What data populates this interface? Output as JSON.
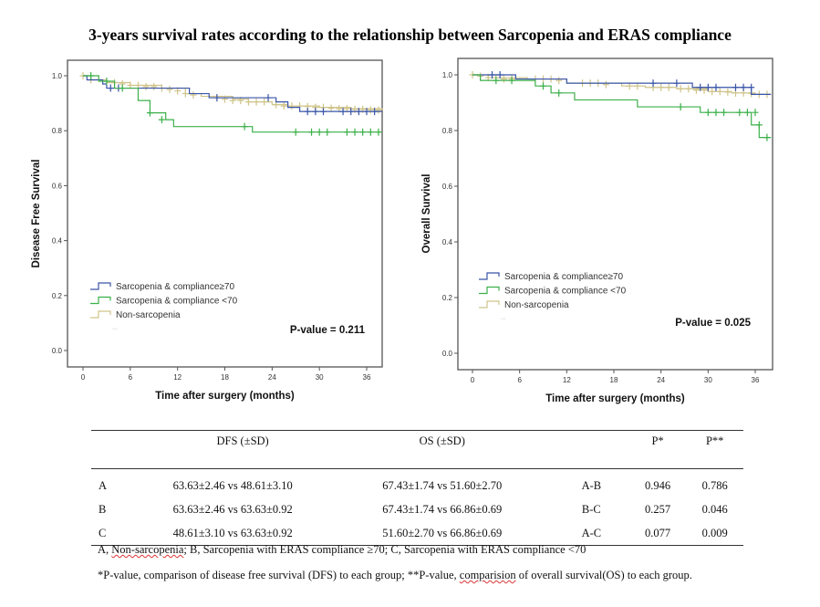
{
  "title": "3-years survival rates according to the relationship between Sarcopenia and ERAS compliance",
  "colors": {
    "blue": "#3a55a8",
    "green": "#3cb04a",
    "tan": "#cfc48a"
  },
  "chart_data": [
    {
      "type": "line",
      "subtype": "kaplan-meier",
      "title": "",
      "xlabel": "Time after surgery (months)",
      "ylabel": "Disease Free Survival",
      "xlim": [
        -2,
        38
      ],
      "ylim": [
        -0.05,
        1.05
      ],
      "xticks": [
        "0",
        "6",
        "12",
        "18",
        "24",
        "30",
        "36"
      ],
      "yticks": [
        "0.0",
        "0.2",
        "0.4",
        "0.6",
        "0.8",
        "1.0"
      ],
      "annotation": "P-value = 0.211",
      "legend": {
        "placement": "lower-left",
        "entries": [
          "Sarcopenia & compliance≥70",
          "Sarcopenia & compliance <70",
          "Non-sarcopenia"
        ],
        "extra": "..."
      },
      "series": [
        {
          "name": "Sarcopenia & compliance≥70",
          "color": "#3a55a8",
          "steps": [
            [
              0,
              1.0
            ],
            [
              0.5,
              0.985
            ],
            [
              2.5,
              0.97
            ],
            [
              3,
              0.955
            ],
            [
              13.5,
              0.935
            ],
            [
              16,
              0.92
            ],
            [
              24.5,
              0.905
            ],
            [
              26,
              0.885
            ],
            [
              27.5,
              0.87
            ],
            [
              38,
              0.87
            ]
          ],
          "censors": [
            [
              3.5,
              0.955
            ],
            [
              4.5,
              0.955
            ],
            [
              17,
              0.92
            ],
            [
              23.5,
              0.92
            ],
            [
              28.5,
              0.87
            ],
            [
              29.5,
              0.87
            ],
            [
              30.5,
              0.87
            ],
            [
              33,
              0.87
            ],
            [
              34,
              0.87
            ],
            [
              35,
              0.87
            ],
            [
              36,
              0.87
            ],
            [
              37,
              0.87
            ]
          ]
        },
        {
          "name": "Sarcopenia & compliance <70",
          "color": "#3cb04a",
          "steps": [
            [
              0,
              1.0
            ],
            [
              2,
              0.98
            ],
            [
              4,
              0.955
            ],
            [
              7,
              0.91
            ],
            [
              8.5,
              0.865
            ],
            [
              10.5,
              0.84
            ],
            [
              11.5,
              0.815
            ],
            [
              21.5,
              0.795
            ],
            [
              38,
              0.795
            ]
          ],
          "censors": [
            [
              1,
              1.0
            ],
            [
              3,
              0.98
            ],
            [
              5,
              0.955
            ],
            [
              8.5,
              0.865
            ],
            [
              10,
              0.84
            ],
            [
              20.5,
              0.815
            ],
            [
              27,
              0.795
            ],
            [
              29,
              0.795
            ],
            [
              30,
              0.795
            ],
            [
              31,
              0.795
            ],
            [
              33.5,
              0.795
            ],
            [
              34.5,
              0.795
            ],
            [
              35.5,
              0.795
            ],
            [
              36.5,
              0.795
            ],
            [
              37.5,
              0.795
            ]
          ]
        },
        {
          "name": "Non-sarcopenia",
          "color": "#cfc48a",
          "steps": [
            [
              0,
              1.0
            ],
            [
              1,
              0.985
            ],
            [
              3,
              0.975
            ],
            [
              6,
              0.965
            ],
            [
              10,
              0.955
            ],
            [
              13,
              0.935
            ],
            [
              15,
              0.925
            ],
            [
              19,
              0.915
            ],
            [
              21,
              0.905
            ],
            [
              24,
              0.895
            ],
            [
              26,
              0.89
            ],
            [
              30,
              0.885
            ],
            [
              34,
              0.88
            ],
            [
              38,
              0.875
            ]
          ],
          "censors": [
            [
              0,
              1.0
            ],
            [
              1,
              0.985
            ],
            [
              4,
              0.975
            ],
            [
              5,
              0.97
            ],
            [
              6,
              0.965
            ],
            [
              7,
              0.965
            ],
            [
              8,
              0.96
            ],
            [
              9,
              0.96
            ],
            [
              10,
              0.955
            ],
            [
              11,
              0.95
            ],
            [
              12,
              0.945
            ],
            [
              13,
              0.935
            ],
            [
              14,
              0.93
            ],
            [
              17,
              0.92
            ],
            [
              18,
              0.915
            ],
            [
              19,
              0.91
            ],
            [
              20,
              0.91
            ],
            [
              21,
              0.905
            ],
            [
              22,
              0.905
            ],
            [
              23,
              0.905
            ],
            [
              24.5,
              0.895
            ],
            [
              25.5,
              0.89
            ],
            [
              26.5,
              0.89
            ],
            [
              27.5,
              0.89
            ],
            [
              28.5,
              0.888
            ],
            [
              29.5,
              0.885
            ],
            [
              30.5,
              0.885
            ],
            [
              31.5,
              0.882
            ],
            [
              32.5,
              0.88
            ],
            [
              33.5,
              0.88
            ],
            [
              34.5,
              0.878
            ],
            [
              35.5,
              0.878
            ],
            [
              36.5,
              0.876
            ],
            [
              37.5,
              0.875
            ]
          ]
        }
      ]
    },
    {
      "type": "line",
      "subtype": "kaplan-meier",
      "title": "",
      "xlabel": "Time after surgery (months)",
      "ylabel": "Overall Survival",
      "xlim": [
        -2,
        38
      ],
      "ylim": [
        -0.05,
        1.05
      ],
      "xticks": [
        "0",
        "6",
        "12",
        "18",
        "24",
        "30",
        "36"
      ],
      "yticks": [
        "0.0",
        "0.2",
        "0.4",
        "0.6",
        "0.8",
        "1.0"
      ],
      "annotation": "P-value = 0.025",
      "legend": {
        "placement": "lower-left",
        "entries": [
          "Sarcopenia & compliance≥70",
          "Sarcopenia & compliance <70",
          "Non-sarcopenia"
        ],
        "extra": "..."
      },
      "series": [
        {
          "name": "Sarcopenia & compliance≥70",
          "color": "#3a55a8",
          "steps": [
            [
              0,
              1.0
            ],
            [
              5.5,
              0.985
            ],
            [
              12,
              0.97
            ],
            [
              28,
              0.955
            ],
            [
              35.5,
              0.93
            ],
            [
              38,
              0.93
            ]
          ],
          "censors": [
            [
              2.5,
              1.0
            ],
            [
              3.5,
              1.0
            ],
            [
              23,
              0.97
            ],
            [
              26,
              0.97
            ],
            [
              29,
              0.955
            ],
            [
              30,
              0.955
            ],
            [
              31,
              0.955
            ],
            [
              33.5,
              0.955
            ],
            [
              34.5,
              0.955
            ],
            [
              35.5,
              0.955
            ]
          ]
        },
        {
          "name": "Sarcopenia & compliance <70",
          "color": "#3cb04a",
          "steps": [
            [
              0,
              1.0
            ],
            [
              1,
              0.98
            ],
            [
              8,
              0.96
            ],
            [
              10,
              0.935
            ],
            [
              13,
              0.91
            ],
            [
              21,
              0.885
            ],
            [
              29,
              0.865
            ],
            [
              35.5,
              0.82
            ],
            [
              36.5,
              0.775
            ],
            [
              38,
              0.775
            ]
          ],
          "censors": [
            [
              3,
              0.98
            ],
            [
              5,
              0.98
            ],
            [
              9,
              0.96
            ],
            [
              11,
              0.935
            ],
            [
              26.5,
              0.885
            ],
            [
              30,
              0.865
            ],
            [
              31,
              0.865
            ],
            [
              32,
              0.865
            ],
            [
              34,
              0.865
            ],
            [
              35,
              0.865
            ],
            [
              36,
              0.865
            ],
            [
              36.5,
              0.82
            ],
            [
              37.5,
              0.775
            ]
          ]
        },
        {
          "name": "Non-sarcopenia",
          "color": "#cfc48a",
          "steps": [
            [
              0,
              1.0
            ],
            [
              2,
              0.99
            ],
            [
              7,
              0.985
            ],
            [
              12,
              0.97
            ],
            [
              19,
              0.96
            ],
            [
              22,
              0.955
            ],
            [
              26,
              0.95
            ],
            [
              30,
              0.94
            ],
            [
              33,
              0.935
            ],
            [
              36,
              0.93
            ],
            [
              38,
              0.93
            ]
          ],
          "censors": [
            [
              0,
              1.0
            ],
            [
              1,
              0.995
            ],
            [
              2,
              0.99
            ],
            [
              3,
              0.99
            ],
            [
              4,
              0.985
            ],
            [
              5,
              0.985
            ],
            [
              8,
              0.985
            ],
            [
              9,
              0.985
            ],
            [
              10,
              0.985
            ],
            [
              11,
              0.98
            ],
            [
              14,
              0.97
            ],
            [
              15,
              0.97
            ],
            [
              16,
              0.97
            ],
            [
              17,
              0.965
            ],
            [
              20,
              0.96
            ],
            [
              21,
              0.96
            ],
            [
              23,
              0.955
            ],
            [
              24,
              0.955
            ],
            [
              25,
              0.955
            ],
            [
              26.5,
              0.95
            ],
            [
              27.5,
              0.95
            ],
            [
              28.5,
              0.945
            ],
            [
              29.5,
              0.945
            ],
            [
              30.5,
              0.94
            ],
            [
              31.5,
              0.94
            ],
            [
              32.5,
              0.938
            ],
            [
              33.5,
              0.935
            ],
            [
              34.5,
              0.935
            ],
            [
              35.5,
              0.933
            ],
            [
              36.5,
              0.93
            ],
            [
              37.5,
              0.93
            ]
          ]
        }
      ]
    }
  ],
  "table": {
    "headers": [
      "",
      "DFS (±SD)",
      "OS (±SD)",
      "",
      "P*",
      "P**"
    ],
    "rows": [
      [
        "A",
        "63.63±2.46 vs 48.61±3.10",
        "67.43±1.74 vs 51.60±2.70",
        "A-B",
        "0.946",
        "0.786"
      ],
      [
        "B",
        "63.63±2.46 vs 63.63±0.92",
        "67.43±1.74 vs 66.86±0.69",
        "B-C",
        "0.257",
        "0.046"
      ],
      [
        "C",
        "48.61±3.10 vs 63.63±0.92",
        "51.60±2.70 vs 66.86±0.69",
        "A-C",
        "0.077",
        "0.009"
      ]
    ]
  },
  "notes": {
    "line1_a": "A, ",
    "line1_b": "Non-sarcopenia",
    "line1_c": "; B, Sarcopenia with ERAS compliance ≥70; C, Sarcopenia with ERAS compliance <70",
    "line2_a": "*P-value, comparison of disease free survival (DFS) to each group; **P-value, ",
    "line2_b": "comparision",
    "line2_c": " of overall survival(OS) to each group."
  }
}
